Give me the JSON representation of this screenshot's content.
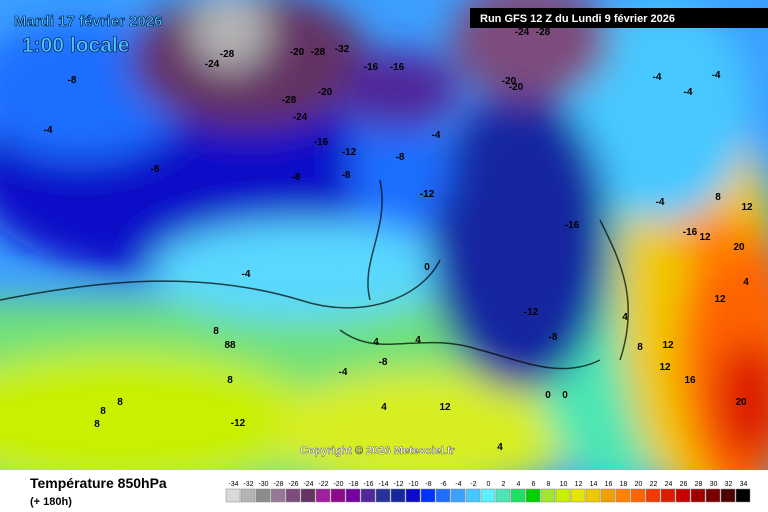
{
  "header": {
    "date": "Mardi 17 février 2026",
    "time": "1:00 locale",
    "run": "Run GFS 12 Z du Lundi 9 février 2026"
  },
  "copyright": "Copyright © 2026 Meteociel.fr",
  "footer": {
    "title": "Température 850hPa",
    "lead": "(+ 180h)"
  },
  "scale": {
    "values": [
      -34,
      -32,
      -30,
      -28,
      -26,
      -24,
      -22,
      -20,
      -18,
      -16,
      -14,
      -12,
      -10,
      -8,
      -6,
      -4,
      -2,
      0,
      2,
      4,
      6,
      8,
      10,
      12,
      14,
      16,
      18,
      20,
      22,
      24,
      26,
      28,
      30,
      32,
      34
    ],
    "colors": [
      "#d9d9d9",
      "#b4b4b4",
      "#8c8c8c",
      "#967896",
      "#7d4b7d",
      "#643264",
      "#a01ea0",
      "#8c0a8c",
      "#7800a0",
      "#50289b",
      "#28329b",
      "#1428a0",
      "#0a0ac8",
      "#0032ff",
      "#1e6eff",
      "#3ca0ff",
      "#46c8ff",
      "#5af0ff",
      "#4be6b4",
      "#1ee164",
      "#00d200",
      "#a0e632",
      "#c8f000",
      "#e6e600",
      "#f0c800",
      "#f0a000",
      "#ff8200",
      "#ff6400",
      "#f03c00",
      "#dc1e00",
      "#c80000",
      "#a00000",
      "#780000",
      "#500000",
      "#000000"
    ]
  },
  "map_labels": [
    "-8",
    "-4",
    "-8",
    "-8",
    "-4",
    "-24",
    "-28",
    "-20",
    "-28",
    "-32",
    "-28",
    "-20",
    "-24",
    "-16",
    "-12",
    "-16",
    "-16",
    "-8",
    "-8",
    "-12",
    "-4",
    "-16",
    "-12",
    "-8",
    "-24",
    "-28",
    "-20",
    "-20",
    "-4",
    "-4",
    "-4",
    "-4",
    "-16",
    "20",
    "12",
    "16",
    "20",
    "-12",
    "8",
    "88",
    "8",
    "8",
    "8",
    "8",
    "4",
    "4",
    "-4",
    "-8",
    "4",
    "12",
    "4",
    "12",
    "4",
    "0",
    "0",
    "0",
    "8",
    "12",
    "8",
    "12",
    "4",
    "12"
  ]
}
